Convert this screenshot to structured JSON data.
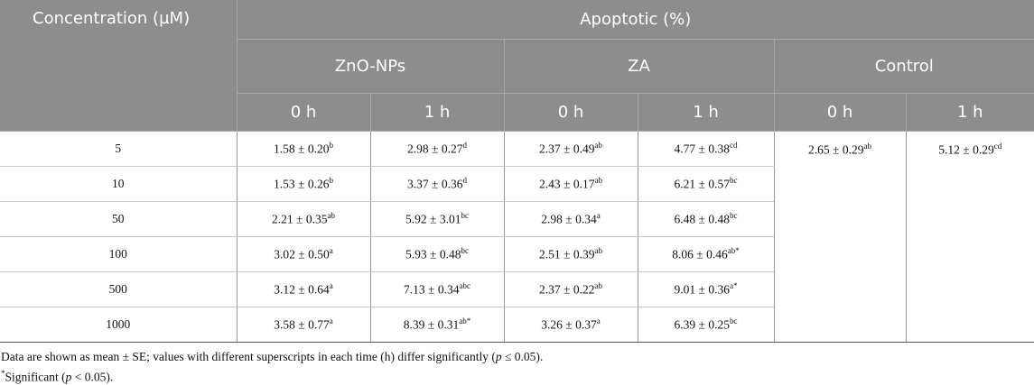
{
  "header": {
    "concentration": "Concentration (µM)",
    "group": "Apoptotic (%)",
    "subgroups": [
      "ZnO-NPs",
      "ZA",
      "Control"
    ],
    "times": [
      "0 h",
      "1 h",
      "0 h",
      "1 h",
      "0 h",
      "1 h"
    ]
  },
  "rows": [
    {
      "concentration": "5",
      "cells": [
        {
          "value": "1.58 ± 0.20",
          "sup": "b"
        },
        {
          "value": "2.98 ± 0.27",
          "sup": "d"
        },
        {
          "value": "2.37 ± 0.49",
          "sup": "ab"
        },
        {
          "value": "4.77 ± 0.38",
          "sup": "cd"
        }
      ]
    },
    {
      "concentration": "10",
      "cells": [
        {
          "value": "1.53 ± 0.26",
          "sup": "b"
        },
        {
          "value": "3.37 ± 0.36",
          "sup": "d"
        },
        {
          "value": "2.43 ± 0.17",
          "sup": "ab"
        },
        {
          "value": "6.21 ± 0.57",
          "sup": "bc"
        }
      ]
    },
    {
      "concentration": "50",
      "cells": [
        {
          "value": "2.21 ± 0.35",
          "sup": "ab"
        },
        {
          "value": "5.92 ± 3.01",
          "sup": "bc"
        },
        {
          "value": "2.98 ± 0.34",
          "sup": "a"
        },
        {
          "value": "6.48 ± 0.48",
          "sup": "bc"
        }
      ]
    },
    {
      "concentration": "100",
      "cells": [
        {
          "value": "3.02 ± 0.50",
          "sup": "a"
        },
        {
          "value": "5.93 ± 0.48",
          "sup": "bc"
        },
        {
          "value": "2.51 ± 0.39",
          "sup": "ab"
        },
        {
          "value": "8.06 ± 0.46",
          "sup": "ab*"
        }
      ]
    },
    {
      "concentration": "500",
      "cells": [
        {
          "value": "3.12 ± 0.64",
          "sup": "a"
        },
        {
          "value": "7.13 ± 0.34",
          "sup": "abc"
        },
        {
          "value": "2.37 ± 0.22",
          "sup": "ab"
        },
        {
          "value": "9.01 ± 0.36",
          "sup": "a*"
        }
      ]
    },
    {
      "concentration": "1000",
      "cells": [
        {
          "value": "3.58 ± 0.77",
          "sup": "a"
        },
        {
          "value": "8.39 ± 0.31",
          "sup": "ab*"
        },
        {
          "value": "3.26 ± 0.37",
          "sup": "a"
        },
        {
          "value": "6.39 ± 0.25",
          "sup": "bc"
        }
      ]
    }
  ],
  "control": [
    {
      "value": "2.65 ± 0.29",
      "sup": "ab"
    },
    {
      "value": "5.12 ± 0.29",
      "sup": "cd"
    }
  ],
  "footnotes": {
    "note1": [
      "Data are shown as mean ± SE; values with different superscripts in each time (h) differ significantly (",
      "p",
      " ≤ 0.05)."
    ],
    "note2": [
      "*",
      "Significant (",
      "p",
      " < 0.05)."
    ]
  }
}
